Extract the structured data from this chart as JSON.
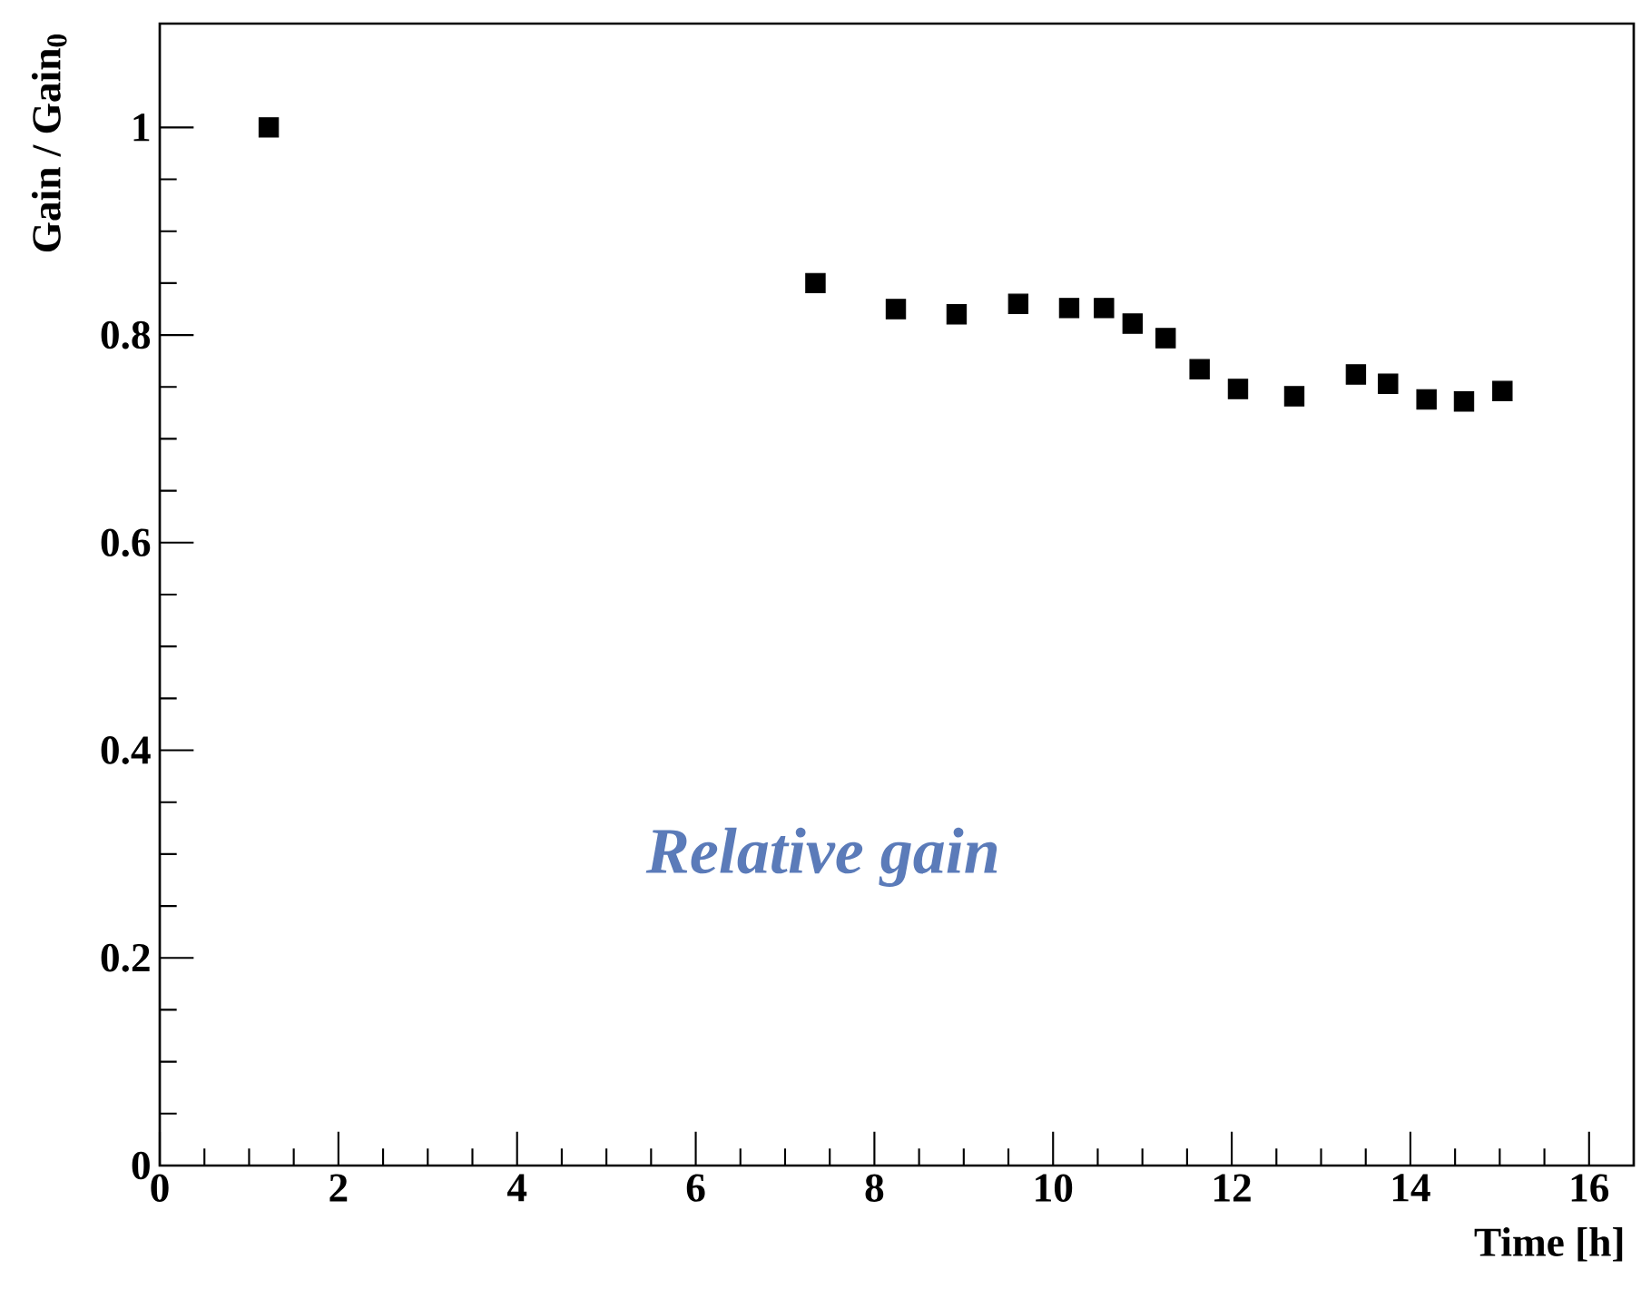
{
  "chart_data": {
    "type": "scatter",
    "x": [
      1.22,
      7.34,
      8.24,
      8.92,
      9.61,
      10.18,
      10.57,
      10.89,
      11.26,
      11.64,
      12.07,
      12.7,
      13.39,
      13.75,
      14.18,
      14.6,
      15.03
    ],
    "values": [
      1.0,
      0.85,
      0.825,
      0.82,
      0.83,
      0.826,
      0.826,
      0.811,
      0.797,
      0.767,
      0.748,
      0.741,
      0.762,
      0.753,
      0.738,
      0.736,
      0.746
    ],
    "color": "#000000",
    "marker": "square",
    "xlabel": "Time [h]",
    "ylabel": "Gain / Gain$_{0}$",
    "xlim": [
      0,
      16.5
    ],
    "ylim": [
      0,
      1.1
    ],
    "xticks": [
      0,
      2,
      4,
      6,
      8,
      10,
      12,
      14,
      16
    ],
    "yticks": [
      0,
      0.2,
      0.4,
      0.6,
      0.8,
      1
    ],
    "annotations": [
      "Relative gain"
    ],
    "grid": false
  }
}
